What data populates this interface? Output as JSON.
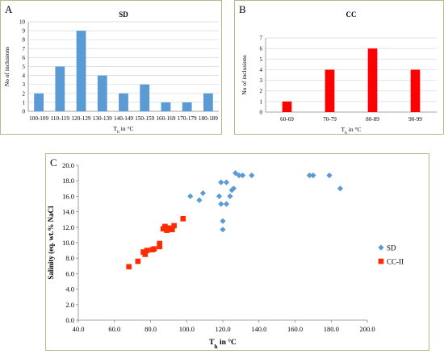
{
  "panels": {
    "a": {
      "label": "A"
    },
    "b": {
      "label": "B"
    },
    "c": {
      "label": "C"
    }
  },
  "colors": {
    "sd": "#5b9bd5",
    "cc": "#ff0000",
    "cc_ii": "#ff2a00",
    "grid": "#d9d9d9",
    "border": "#b8b88a"
  },
  "chart_data": [
    {
      "type": "bar",
      "title": "SD",
      "xlabel": "Th in °C",
      "xlabel_parts": {
        "base": "T",
        "sub": "h",
        "rest": " in °C"
      },
      "ylabel": "No of inclusions",
      "categories": [
        "100-109",
        "110-119",
        "120-129",
        "130-139",
        "140-149",
        "150-159",
        "160-169",
        "170-179",
        "180-189"
      ],
      "values": [
        2,
        5,
        9,
        4,
        2,
        3,
        1,
        1,
        2
      ],
      "ylim": [
        0,
        10
      ],
      "yticks": [
        "0",
        "1",
        "2",
        "3",
        "4",
        "5",
        "6",
        "7",
        "8",
        "9",
        "10"
      ],
      "color": "#5b9bd5",
      "grid": true
    },
    {
      "type": "bar",
      "title": "CC",
      "xlabel": "Th in °C",
      "xlabel_parts": {
        "base": "T",
        "sub": "h",
        "rest": " in °C"
      },
      "ylabel": "No of inclusions",
      "categories": [
        "60-69",
        "70-79",
        "80-89",
        "90-99"
      ],
      "values": [
        1,
        4,
        6,
        4
      ],
      "ylim": [
        0,
        7
      ],
      "yticks": [
        "0",
        "1",
        "2",
        "3",
        "4",
        "5",
        "6",
        "7"
      ],
      "color": "#ff0000",
      "grid": true
    },
    {
      "type": "scatter",
      "xlabel": "Th in °C",
      "xlabel_parts": {
        "base": "T",
        "sub": "h",
        "rest": " in °C"
      },
      "ylabel": "Salinity (eq. wt.% NaCl",
      "xlim": [
        40,
        200
      ],
      "ylim": [
        0,
        20
      ],
      "xticks": [
        "40.0",
        "60.0",
        "80.0",
        "100.0",
        "120.0",
        "140.0",
        "160.0",
        "180.0",
        "200.0"
      ],
      "yticks": [
        "0.0",
        "2.0",
        "4.0",
        "6.0",
        "8.0",
        "10.0",
        "12.0",
        "14.0",
        "16.0",
        "18.0",
        "20.0"
      ],
      "legend_position": "right",
      "grid": false,
      "series": [
        {
          "name": "SD",
          "marker": "diamond",
          "color": "#5b9bd5",
          "points": [
            [
              102,
              16.0
            ],
            [
              107,
              15.5
            ],
            [
              109,
              16.4
            ],
            [
              118,
              16.0
            ],
            [
              119,
              15.0
            ],
            [
              119,
              17.8
            ],
            [
              120,
              12.8
            ],
            [
              120,
              11.7
            ],
            [
              122,
              17.8
            ],
            [
              122,
              15.0
            ],
            [
              124,
              16.0
            ],
            [
              125,
              16.8
            ],
            [
              126,
              17.0
            ],
            [
              127,
              19.0
            ],
            [
              129,
              18.7
            ],
            [
              131,
              18.7
            ],
            [
              136,
              18.7
            ],
            [
              168,
              18.7
            ],
            [
              170,
              18.7
            ],
            [
              179,
              18.7
            ],
            [
              185,
              17.0
            ]
          ]
        },
        {
          "name": "CC-II",
          "marker": "square",
          "color": "#ff2a00",
          "points": [
            [
              68,
              6.9
            ],
            [
              73,
              7.6
            ],
            [
              76,
              8.8
            ],
            [
              77,
              8.5
            ],
            [
              78,
              9.0
            ],
            [
              81,
              9.1
            ],
            [
              82,
              9.2
            ],
            [
              85,
              9.5
            ],
            [
              85,
              9.9
            ],
            [
              87,
              11.8
            ],
            [
              88,
              12.1
            ],
            [
              89,
              11.6
            ],
            [
              90,
              11.9
            ],
            [
              92,
              11.7
            ],
            [
              93,
              12.2
            ],
            [
              98,
              13.1
            ]
          ]
        }
      ]
    }
  ]
}
